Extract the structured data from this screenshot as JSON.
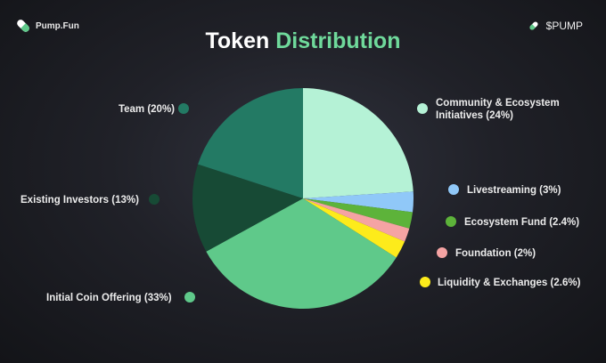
{
  "header": {
    "brand": "Pump.Fun",
    "ticker": "$PUMP",
    "title_part1": "Token",
    "title_part2": "Distribution"
  },
  "chart_data": {
    "type": "pie",
    "title": "Token Distribution",
    "slices": [
      {
        "label": "Community & Ecosystem Initiatives (24%)",
        "line1": "Community & Ecosystem",
        "line2": "Initiatives (24%)",
        "value": 24,
        "color": "#b5f2d6"
      },
      {
        "label": "Livestreaming (3%)",
        "value": 3,
        "color": "#90c8f8"
      },
      {
        "label": "Ecosystem Fund (2.4%)",
        "value": 2.4,
        "color": "#5db33a"
      },
      {
        "label": "Foundation (2%)",
        "value": 2,
        "color": "#f5a3a3"
      },
      {
        "label": "Liquidity & Exchanges (2.6%)",
        "value": 2.6,
        "color": "#fdeb1b"
      },
      {
        "label": "Initial Coin Offering (33%)",
        "value": 33,
        "color": "#5fc98a"
      },
      {
        "label": "Existing Investors (13%)",
        "value": 13,
        "color": "#174a35"
      },
      {
        "label": "Team (20%)",
        "value": 20,
        "color": "#237a64"
      }
    ],
    "start": "top",
    "direction": "clockwise",
    "legend": "labels around pie"
  }
}
